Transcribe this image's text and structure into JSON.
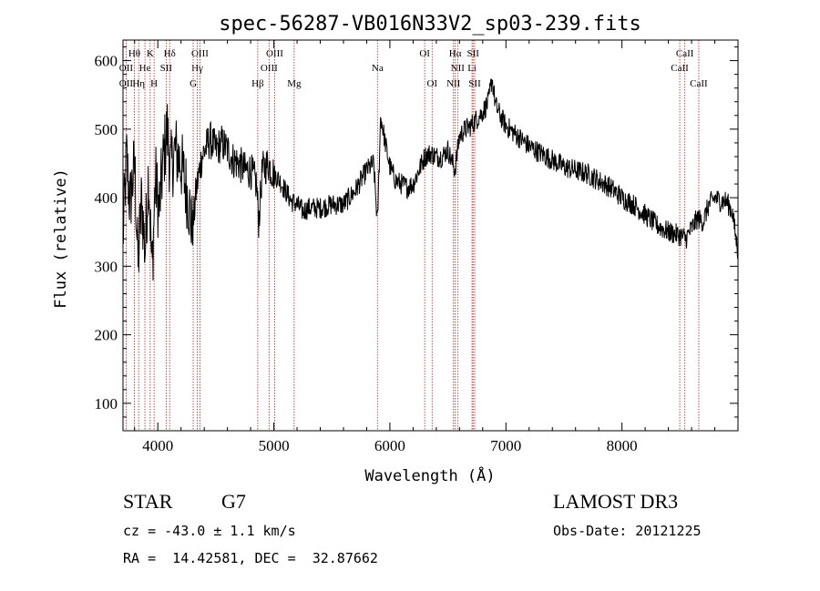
{
  "chart_data": {
    "type": "line",
    "title": "spec-56287-VB016N33V2_sp03-239.fits",
    "xlabel": "Wavelength (Å)",
    "ylabel": "Flux (relative)",
    "xlim": [
      3700,
      9000
    ],
    "ylim": [
      60,
      630
    ],
    "x_ticks": [
      4000,
      5000,
      6000,
      7000,
      8000
    ],
    "y_ticks": [
      100,
      200,
      300,
      400,
      500,
      600
    ],
    "spectrum_anchors": [
      [
        3700,
        340
      ],
      [
        3730,
        460
      ],
      [
        3760,
        390
      ],
      [
        3800,
        450
      ],
      [
        3830,
        300
      ],
      [
        3860,
        400
      ],
      [
        3890,
        320
      ],
      [
        3920,
        440
      ],
      [
        3950,
        290
      ],
      [
        3980,
        430
      ],
      [
        4010,
        380
      ],
      [
        4050,
        460
      ],
      [
        4080,
        500
      ],
      [
        4110,
        440
      ],
      [
        4150,
        470
      ],
      [
        4200,
        450
      ],
      [
        4260,
        400
      ],
      [
        4300,
        350
      ],
      [
        4330,
        410
      ],
      [
        4380,
        460
      ],
      [
        4450,
        485
      ],
      [
        4500,
        470
      ],
      [
        4550,
        480
      ],
      [
        4600,
        470
      ],
      [
        4650,
        455
      ],
      [
        4700,
        450
      ],
      [
        4750,
        440
      ],
      [
        4800,
        440
      ],
      [
        4850,
        420
      ],
      [
        4870,
        365
      ],
      [
        4900,
        440
      ],
      [
        4950,
        450
      ],
      [
        5000,
        435
      ],
      [
        5050,
        425
      ],
      [
        5100,
        410
      ],
      [
        5150,
        395
      ],
      [
        5200,
        390
      ],
      [
        5250,
        380
      ],
      [
        5300,
        385
      ],
      [
        5400,
        385
      ],
      [
        5500,
        390
      ],
      [
        5600,
        390
      ],
      [
        5700,
        410
      ],
      [
        5800,
        440
      ],
      [
        5860,
        450
      ],
      [
        5893,
        360
      ],
      [
        5920,
        520
      ],
      [
        5960,
        480
      ],
      [
        6000,
        445
      ],
      [
        6050,
        425
      ],
      [
        6100,
        420
      ],
      [
        6150,
        415
      ],
      [
        6200,
        420
      ],
      [
        6250,
        440
      ],
      [
        6300,
        460
      ],
      [
        6350,
        465
      ],
      [
        6400,
        460
      ],
      [
        6450,
        460
      ],
      [
        6500,
        470
      ],
      [
        6560,
        440
      ],
      [
        6600,
        490
      ],
      [
        6650,
        500
      ],
      [
        6700,
        505
      ],
      [
        6750,
        515
      ],
      [
        6800,
        525
      ],
      [
        6850,
        540
      ],
      [
        6880,
        575
      ],
      [
        6910,
        535
      ],
      [
        6950,
        520
      ],
      [
        7000,
        505
      ],
      [
        7100,
        490
      ],
      [
        7200,
        475
      ],
      [
        7300,
        465
      ],
      [
        7400,
        455
      ],
      [
        7500,
        445
      ],
      [
        7600,
        440
      ],
      [
        7700,
        435
      ],
      [
        7800,
        425
      ],
      [
        7900,
        415
      ],
      [
        8000,
        400
      ],
      [
        8100,
        390
      ],
      [
        8200,
        375
      ],
      [
        8300,
        360
      ],
      [
        8400,
        350
      ],
      [
        8500,
        345
      ],
      [
        8550,
        340
      ],
      [
        8600,
        355
      ],
      [
        8650,
        370
      ],
      [
        8700,
        365
      ],
      [
        8750,
        390
      ],
      [
        8800,
        400
      ],
      [
        8850,
        395
      ],
      [
        8900,
        395
      ],
      [
        8950,
        380
      ],
      [
        9000,
        320
      ]
    ],
    "spectral_lines": [
      {
        "label": "Hθ",
        "x": 3798,
        "row": 1
      },
      {
        "label": "K",
        "x": 3934,
        "row": 1
      },
      {
        "label": "Hδ",
        "x": 4102,
        "row": 1
      },
      {
        "label": "OIII",
        "x": 4363,
        "row": 1
      },
      {
        "label": "OIII",
        "x": 5007,
        "row": 1
      },
      {
        "label": "OI",
        "x": 6300,
        "row": 1
      },
      {
        "label": "Hα",
        "x": 6563,
        "row": 1
      },
      {
        "label": "SII",
        "x": 6717,
        "row": 1
      },
      {
        "label": "CaII",
        "x": 8542,
        "row": 1
      },
      {
        "label": "OII",
        "x": 3727,
        "row": 2
      },
      {
        "label": "He",
        "x": 3889,
        "row": 2
      },
      {
        "label": "SII",
        "x": 4072,
        "row": 2
      },
      {
        "label": "Hγ",
        "x": 4340,
        "row": 2
      },
      {
        "label": "OIII",
        "x": 4959,
        "row": 2
      },
      {
        "label": "Na",
        "x": 5893,
        "row": 2
      },
      {
        "label": "NII",
        "x": 6584,
        "row": 2
      },
      {
        "label": "Li",
        "x": 6708,
        "row": 2
      },
      {
        "label": "CaII",
        "x": 8498,
        "row": 2
      },
      {
        "label": "OII",
        "x": 3727,
        "row": 3
      },
      {
        "label": "Hη",
        "x": 3835,
        "row": 3
      },
      {
        "label": "H",
        "x": 3968,
        "row": 3
      },
      {
        "label": "G",
        "x": 4305,
        "row": 3
      },
      {
        "label": "Hβ",
        "x": 4861,
        "row": 3
      },
      {
        "label": "Mg",
        "x": 5175,
        "row": 3
      },
      {
        "label": "OI",
        "x": 6364,
        "row": 3
      },
      {
        "label": "NII",
        "x": 6548,
        "row": 3
      },
      {
        "label": "SII",
        "x": 6731,
        "row": 3
      },
      {
        "label": "CaII",
        "x": 8662,
        "row": 3
      }
    ]
  },
  "info": {
    "object_class": "STAR",
    "subclass": "G7",
    "redshift": "cz = -43.0 ± 1.1 km/s",
    "coords": "RA =  14.42581, DEC =  32.87662",
    "survey": "LAMOST DR3",
    "obs_date": "Obs-Date: 20121225"
  }
}
